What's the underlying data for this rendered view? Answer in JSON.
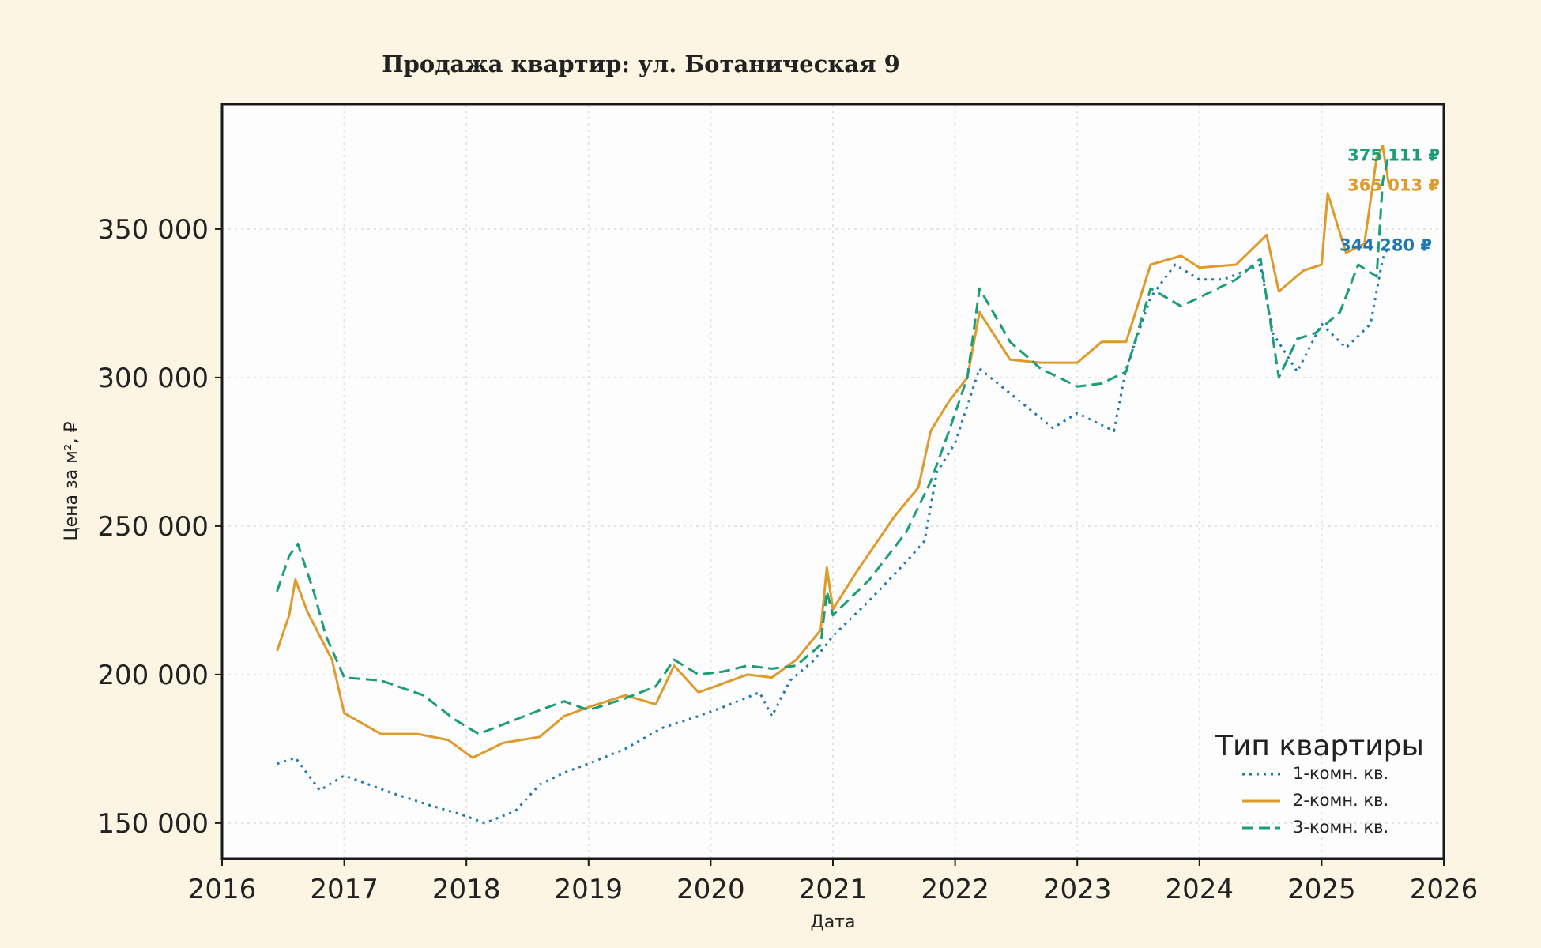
{
  "chart_data": {
    "type": "line",
    "title": "Продажа квартир: ул. Ботаническая 9",
    "xlabel": "Дата",
    "ylabel": "Цена за м², ₽",
    "xlim": [
      2016,
      2026
    ],
    "ylim": [
      138000,
      392000
    ],
    "x_ticks": [
      "2016",
      "2017",
      "2018",
      "2019",
      "2020",
      "2021",
      "2022",
      "2023",
      "2024",
      "2025",
      "2026"
    ],
    "y_ticks": [
      {
        "value": 150000,
        "label": "150 000"
      },
      {
        "value": 200000,
        "label": "200 000"
      },
      {
        "value": 250000,
        "label": "250 000"
      },
      {
        "value": 300000,
        "label": "300 000"
      },
      {
        "value": 350000,
        "label": "350 000"
      }
    ],
    "grid": true,
    "legend": {
      "title": "Тип квартиры",
      "position": "bottom-right"
    },
    "series": [
      {
        "name": "1-комн. кв.",
        "color": "#1f78b4",
        "style": "dotted",
        "end_label": "344 280 ₽",
        "x": [
          2016.45,
          2016.6,
          2016.8,
          2017.0,
          2017.4,
          2017.7,
          2017.95,
          2018.15,
          2018.4,
          2018.6,
          2018.8,
          2019.0,
          2019.3,
          2019.6,
          2019.9,
          2020.1,
          2020.4,
          2020.5,
          2020.65,
          2020.85,
          2021.0,
          2021.3,
          2021.6,
          2021.75,
          2021.85,
          2022.0,
          2022.2,
          2022.5,
          2022.8,
          2023.0,
          2023.3,
          2023.4,
          2023.6,
          2023.8,
          2024.0,
          2024.2,
          2024.5,
          2024.6,
          2024.8,
          2024.9,
          2025.0,
          2025.2,
          2025.4,
          2025.5,
          2025.55
        ],
        "values": [
          170000,
          172000,
          161000,
          166000,
          160000,
          156000,
          153000,
          150000,
          154000,
          163000,
          167000,
          170000,
          175000,
          182000,
          186000,
          189000,
          194000,
          186000,
          198000,
          205000,
          213000,
          225000,
          238000,
          245000,
          268000,
          278000,
          303000,
          293000,
          283000,
          288000,
          282000,
          303000,
          327000,
          338000,
          333000,
          333000,
          338000,
          315000,
          302000,
          310000,
          318000,
          310000,
          318000,
          340000,
          344280
        ]
      },
      {
        "name": "2-комн. кв.",
        "color": "#de9a2a",
        "style": "solid",
        "end_label": "365 013 ₽",
        "x": [
          2016.45,
          2016.55,
          2016.6,
          2016.7,
          2016.9,
          2017.0,
          2017.3,
          2017.6,
          2017.85,
          2018.05,
          2018.3,
          2018.6,
          2018.8,
          2019.0,
          2019.3,
          2019.55,
          2019.7,
          2019.9,
          2020.1,
          2020.3,
          2020.5,
          2020.7,
          2020.9,
          2020.95,
          2021.0,
          2021.2,
          2021.5,
          2021.7,
          2021.8,
          2021.95,
          2022.1,
          2022.2,
          2022.45,
          2022.7,
          2023.0,
          2023.2,
          2023.4,
          2023.6,
          2023.85,
          2024.0,
          2024.3,
          2024.55,
          2024.65,
          2024.85,
          2025.0,
          2025.05,
          2025.2,
          2025.35,
          2025.45,
          2025.5,
          2025.55
        ],
        "values": [
          208000,
          220000,
          232000,
          221000,
          205000,
          187000,
          180000,
          180000,
          178000,
          172000,
          177000,
          179000,
          186000,
          189000,
          193000,
          190000,
          203000,
          194000,
          197000,
          200000,
          199000,
          205000,
          215000,
          236000,
          222000,
          235000,
          253000,
          263000,
          282000,
          292000,
          300000,
          322000,
          306000,
          305000,
          305000,
          312000,
          312000,
          338000,
          341000,
          337000,
          338000,
          348000,
          329000,
          336000,
          338000,
          362000,
          342000,
          345000,
          374000,
          378000,
          365013
        ]
      },
      {
        "name": "3-комн. кв.",
        "color": "#1b9e77",
        "style": "dashed",
        "end_label": "375 111 ₽",
        "x": [
          2016.45,
          2016.55,
          2016.62,
          2016.75,
          2016.85,
          2017.0,
          2017.3,
          2017.65,
          2017.9,
          2018.1,
          2018.35,
          2018.6,
          2018.8,
          2019.0,
          2019.3,
          2019.55,
          2019.7,
          2019.9,
          2020.1,
          2020.3,
          2020.5,
          2020.7,
          2020.9,
          2020.95,
          2021.0,
          2021.3,
          2021.6,
          2021.8,
          2021.95,
          2022.1,
          2022.2,
          2022.45,
          2022.7,
          2023.0,
          2023.2,
          2023.4,
          2023.6,
          2023.85,
          2024.0,
          2024.3,
          2024.5,
          2024.65,
          2024.8,
          2024.95,
          2025.15,
          2025.3,
          2025.45,
          2025.5,
          2025.55
        ],
        "values": [
          228000,
          240000,
          244000,
          228000,
          213000,
          199000,
          198000,
          193000,
          185000,
          180000,
          184000,
          188000,
          191000,
          188000,
          192000,
          196000,
          205000,
          200000,
          201000,
          203000,
          202000,
          203000,
          210000,
          228000,
          220000,
          232000,
          248000,
          265000,
          282000,
          300000,
          330000,
          312000,
          303000,
          297000,
          298000,
          302000,
          330000,
          324000,
          327000,
          333000,
          340000,
          300000,
          313000,
          315000,
          322000,
          338000,
          334000,
          366000,
          375111
        ]
      }
    ]
  }
}
